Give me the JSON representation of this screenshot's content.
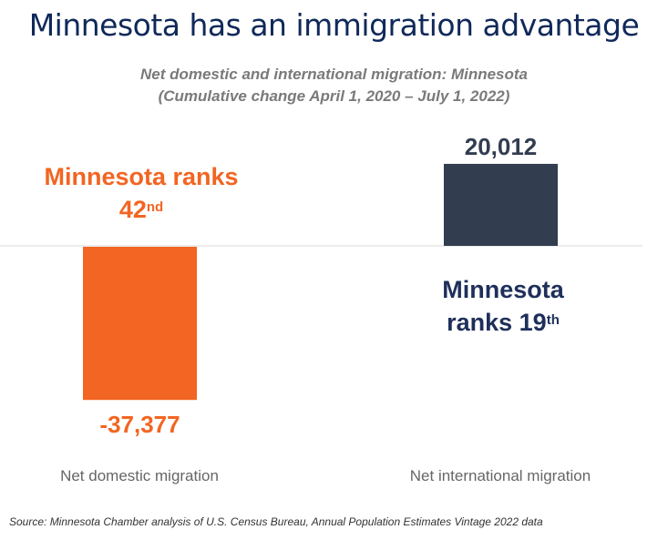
{
  "title": "Minnesota has an immigration advantage",
  "subtitle_line1": "Net domestic and international migration: Minnesota",
  "subtitle_line2": "(Cumulative change April 1, 2020 – July 1, 2022)",
  "source": "Source: Minnesota Chamber analysis of U.S. Census Bureau, Annual Population Estimates Vintage 2022 data",
  "annotations": {
    "domestic": {
      "text": "Minnesota ranks",
      "rank": "42",
      "suffix": "nd"
    },
    "international": {
      "line1": "Minnesota",
      "text": "ranks 19",
      "suffix": "th"
    }
  },
  "colors": {
    "domestic": "#f26522",
    "international": "#323d4f",
    "title": "#10295a"
  },
  "chart_data": {
    "type": "bar",
    "categories": [
      "Net domestic migration",
      "Net international migration"
    ],
    "values": [
      -37377,
      20012
    ],
    "data_labels": [
      "-37,377",
      "20,012"
    ],
    "title": "Net domestic and international migration: Minnesota",
    "xlabel": "",
    "ylabel": "",
    "grid": false,
    "legend": "none"
  }
}
